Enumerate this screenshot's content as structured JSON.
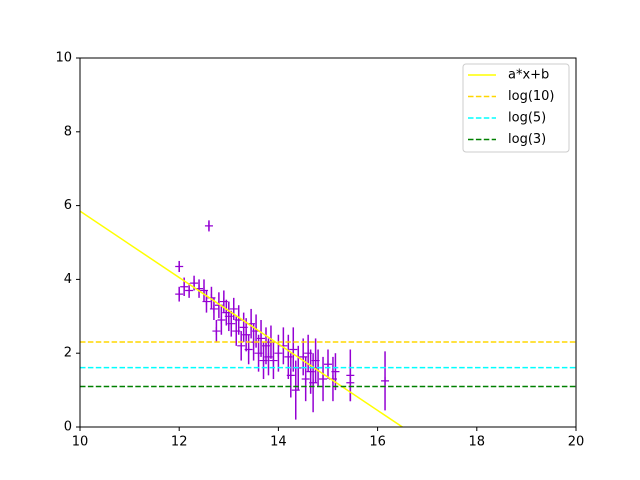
{
  "chart_data": {
    "type": "scatter",
    "xlim": [
      10,
      20
    ],
    "xticks": [
      10,
      12,
      14,
      16,
      18,
      20
    ],
    "ylim": [
      0,
      10
    ],
    "yticks": [
      0,
      2,
      4,
      6,
      8,
      10
    ],
    "grid": false,
    "legend": "upper right",
    "series": [
      {
        "type": "errorbar",
        "color": "#9400d3",
        "x": [
          12.0,
          12.0,
          12.1,
          12.2,
          12.3,
          12.4,
          12.5,
          12.55,
          12.6,
          12.65,
          12.7,
          12.75,
          12.8,
          12.85,
          12.9,
          12.95,
          13.0,
          13.05,
          13.1,
          13.15,
          13.2,
          13.25,
          13.3,
          13.35,
          13.4,
          13.45,
          13.5,
          13.55,
          13.6,
          13.65,
          13.7,
          13.75,
          13.8,
          13.85,
          13.9,
          14.0,
          14.1,
          14.2,
          14.25,
          14.3,
          14.35,
          14.4,
          14.5,
          14.55,
          14.6,
          14.65,
          14.7,
          14.75,
          14.8,
          14.9,
          15.0,
          15.1,
          15.15,
          15.45,
          15.45,
          16.15
        ],
        "values": [
          4.35,
          3.6,
          3.8,
          3.7,
          3.9,
          3.75,
          3.7,
          3.4,
          5.45,
          3.5,
          3.2,
          2.6,
          3.3,
          2.9,
          3.4,
          3.1,
          3.0,
          2.8,
          3.2,
          2.6,
          2.9,
          2.2,
          2.7,
          2.5,
          2.1,
          2.8,
          2.3,
          2.6,
          2.0,
          2.4,
          1.8,
          2.2,
          1.9,
          2.3,
          1.8,
          2.0,
          2.2,
          1.9,
          1.4,
          2.1,
          1.0,
          1.6,
          1.9,
          1.3,
          2.0,
          1.5,
          1.2,
          1.8,
          1.6,
          1.3,
          1.7,
          1.3,
          1.5,
          1.2,
          1.4,
          1.25
        ],
        "errors": [
          0.15,
          0.2,
          0.25,
          0.2,
          0.2,
          0.25,
          0.3,
          0.3,
          0.15,
          0.3,
          0.3,
          0.3,
          0.35,
          0.4,
          0.3,
          0.35,
          0.4,
          0.35,
          0.3,
          0.4,
          0.4,
          0.4,
          0.4,
          0.45,
          0.4,
          0.4,
          0.5,
          0.45,
          0.5,
          0.5,
          0.5,
          0.5,
          0.5,
          0.45,
          0.5,
          0.5,
          0.5,
          0.6,
          0.6,
          0.6,
          0.8,
          0.6,
          0.5,
          0.6,
          0.5,
          0.6,
          0.8,
          0.6,
          0.5,
          0.6,
          0.4,
          0.6,
          0.5,
          0.5,
          0.7,
          0.8
        ]
      },
      {
        "type": "line",
        "name": "a*x+b",
        "color": "#ffff00",
        "style": "solid",
        "x": [
          10,
          16.5
        ],
        "values": [
          5.85,
          0
        ]
      },
      {
        "type": "line",
        "name": "log(10)",
        "color": "#ffd700",
        "style": "dashed",
        "x": [
          10,
          20
        ],
        "values": [
          2.303,
          2.303
        ]
      },
      {
        "type": "line",
        "name": "log(5)",
        "color": "#00ffff",
        "style": "dashed",
        "x": [
          10,
          20
        ],
        "values": [
          1.609,
          1.609
        ]
      },
      {
        "type": "line",
        "name": "log(3)",
        "color": "#008000",
        "style": "dashed",
        "x": [
          10,
          20
        ],
        "values": [
          1.099,
          1.099
        ]
      }
    ]
  }
}
